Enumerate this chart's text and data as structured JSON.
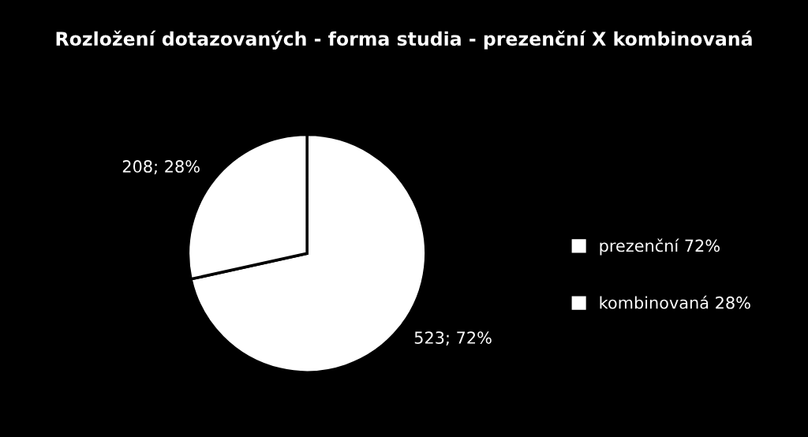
{
  "chart_data": {
    "type": "pie",
    "title": "Rozložení dotazovaných - forma studia - prezenční X kombinovaná",
    "categories": [
      "prezenční 72%",
      "kombinovaná 28%"
    ],
    "values": [
      523,
      208
    ],
    "colors": [
      "#ffffff",
      "#ffffff"
    ],
    "value_labels": [
      "523; 72%",
      "208; 28%"
    ],
    "legend": "right"
  }
}
